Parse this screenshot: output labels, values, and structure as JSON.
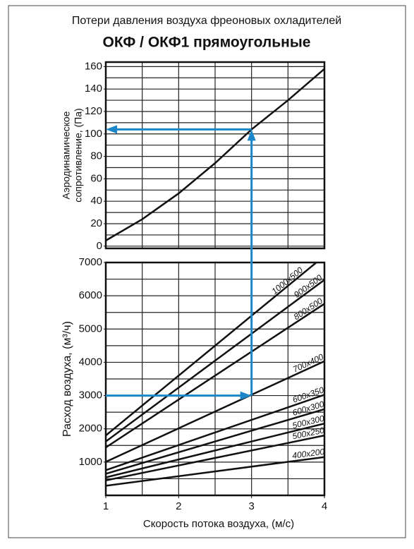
{
  "title": "Потери давления воздуха фреоновых охладителей",
  "subtitle": "ОКФ / ОКФ1 прямоугольные",
  "example": {
    "x": 3,
    "airflow": 3000,
    "pressure": 104,
    "color": "#1b87c9"
  },
  "chart_data": [
    {
      "type": "line",
      "ylabel": [
        "Аэродинамическое",
        "сопротивление, (Па)"
      ],
      "x": [
        1,
        1.5,
        2,
        2.5,
        3,
        3.5,
        4
      ],
      "series": [
        {
          "color": "#111111",
          "values": [
            5,
            24,
            47,
            74,
            104,
            130,
            158
          ]
        }
      ],
      "xlim": [
        1,
        4
      ],
      "ylim": [
        -2,
        164
      ],
      "yticks": [
        0,
        20,
        40,
        60,
        80,
        100,
        120,
        140,
        160
      ],
      "xgrid_step": 0.5,
      "ygrid_step": 10
    },
    {
      "type": "line",
      "ylabel": "Расход воздуха, (м³/ч)",
      "xlabel": "Скорость потока воздуха, (м/с)",
      "x": [
        1,
        4
      ],
      "series": [
        {
          "name": "1000x500",
          "color": "#111111",
          "values": [
            1800,
            7200
          ]
        },
        {
          "name": "900x500",
          "color": "#111111",
          "values": [
            1620,
            6480
          ]
        },
        {
          "name": "800x500",
          "color": "#111111",
          "values": [
            1440,
            5760
          ]
        },
        {
          "name": "700x400",
          "color": "#111111",
          "values": [
            1008,
            4032
          ]
        },
        {
          "name": "600x350",
          "color": "#111111",
          "values": [
            756,
            3024
          ]
        },
        {
          "name": "600x300",
          "color": "#111111",
          "values": [
            648,
            2592
          ]
        },
        {
          "name": "500x300",
          "color": "#111111",
          "values": [
            540,
            2160
          ]
        },
        {
          "name": "500x250",
          "color": "#111111",
          "values": [
            450,
            1800
          ]
        },
        {
          "name": "400x200",
          "color": "#111111",
          "values": [
            288,
            1152
          ]
        }
      ],
      "xlim": [
        1,
        4
      ],
      "ylim": [
        0,
        7000
      ],
      "xticks": [
        1,
        2,
        3,
        4
      ],
      "yticks": [
        1000,
        2000,
        3000,
        4000,
        5000,
        6000,
        7000
      ],
      "xgrid_step": 0.5,
      "ygrid_step": 500
    }
  ]
}
